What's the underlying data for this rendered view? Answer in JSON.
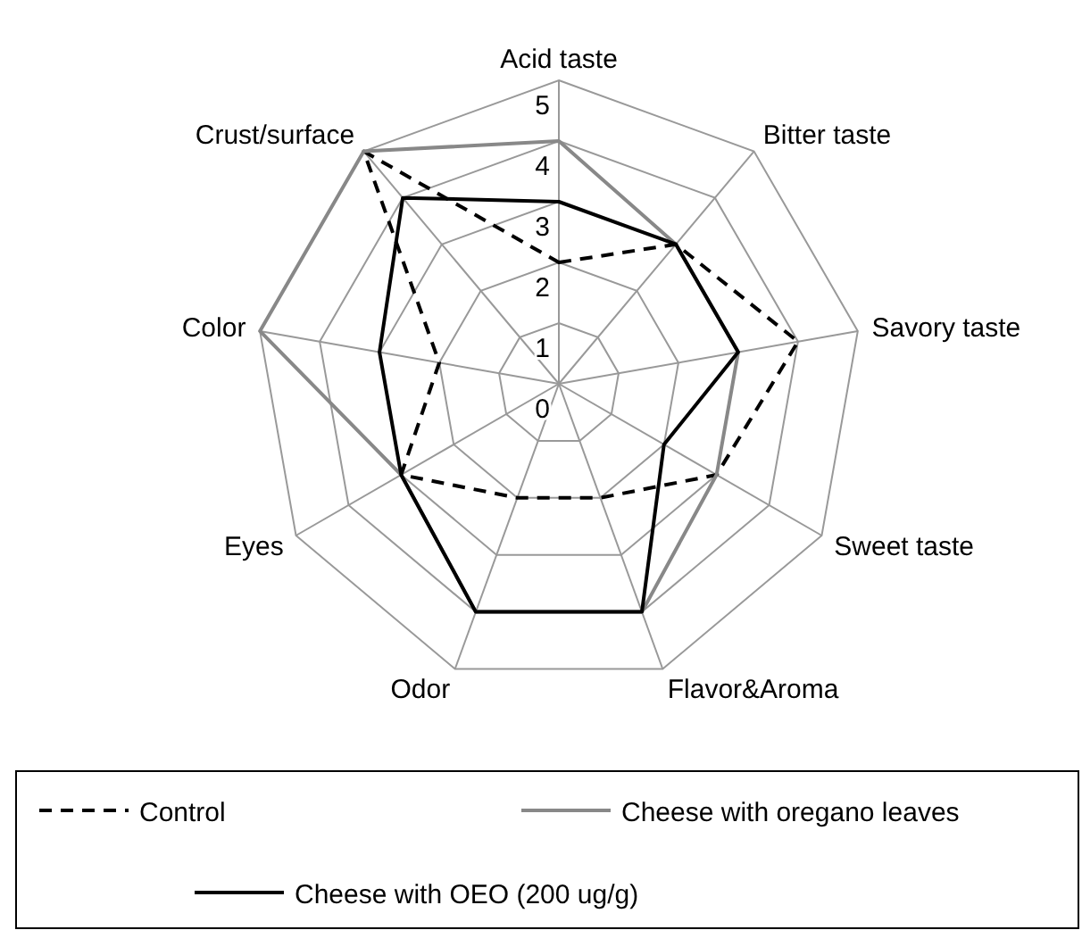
{
  "chart_data": {
    "type": "radar",
    "categories": [
      "Acid taste",
      "Bitter taste",
      "Savory taste",
      "Sweet taste",
      "Flavor&Aroma",
      "Odor",
      "Eyes",
      "Color",
      "Crust/surface"
    ],
    "ylim": [
      0,
      5
    ],
    "yticks": [
      0,
      1,
      2,
      3,
      4,
      5
    ],
    "grid": true,
    "legend": "bottom",
    "marker": "none",
    "series": [
      {
        "name": "Control",
        "color": "#000000",
        "line_style": "dashed",
        "values": [
          2,
          3,
          4,
          3,
          2,
          2,
          3,
          2,
          5
        ]
      },
      {
        "name": "Cheese with oregano leaves",
        "color": "#888888",
        "line_style": "solid",
        "values": [
          4,
          3,
          3,
          3,
          4,
          4,
          3,
          5,
          5
        ]
      },
      {
        "name": "Cheese with OEO (200 ug/g)",
        "color": "#000000",
        "line_style": "solid",
        "values": [
          3,
          3,
          3,
          2,
          4,
          4,
          3,
          3,
          4
        ]
      }
    ]
  }
}
